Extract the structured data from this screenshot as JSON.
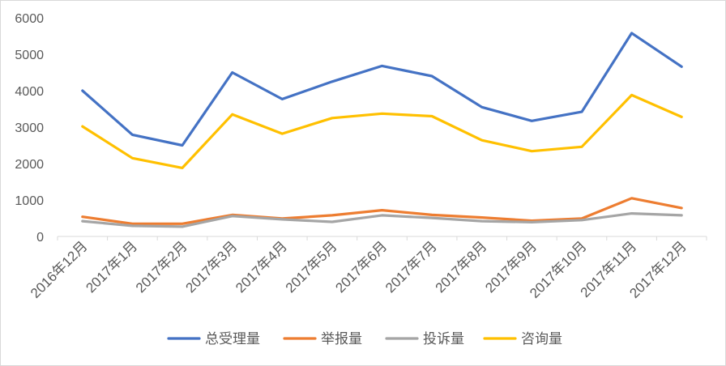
{
  "chart_data": {
    "type": "line",
    "ylim": [
      0,
      6000
    ],
    "yticks": [
      0,
      1000,
      2000,
      3000,
      4000,
      5000,
      6000
    ],
    "grid": false,
    "legend": "bottom",
    "axis_color": "#D9D9D9",
    "label_color": "#595959",
    "categories": [
      "2016年12月",
      "2017年1月",
      "2017年2月",
      "2017年3月",
      "2017年4月",
      "2017年5月",
      "2017年6月",
      "2017年7月",
      "2017年8月",
      "2017年9月",
      "2017年10月",
      "2017年11月",
      "2017年12月"
    ],
    "series": [
      {
        "name": "总受理量",
        "color": "#4472C4",
        "values": [
          4000,
          2790,
          2500,
          4500,
          3770,
          4250,
          4680,
          4400,
          3550,
          3170,
          3420,
          5580,
          4660
        ]
      },
      {
        "name": "举报量",
        "color": "#ED7D31",
        "values": [
          540,
          350,
          350,
          590,
          490,
          580,
          720,
          590,
          520,
          430,
          490,
          1050,
          780
        ]
      },
      {
        "name": "投诉量",
        "color": "#A5A5A5",
        "values": [
          420,
          290,
          270,
          560,
          470,
          400,
          580,
          510,
          420,
          390,
          450,
          630,
          580
        ]
      },
      {
        "name": "咨询量",
        "color": "#FFC000",
        "values": [
          3020,
          2150,
          1880,
          3350,
          2820,
          3250,
          3370,
          3300,
          2640,
          2340,
          2460,
          3880,
          3280
        ]
      }
    ]
  }
}
